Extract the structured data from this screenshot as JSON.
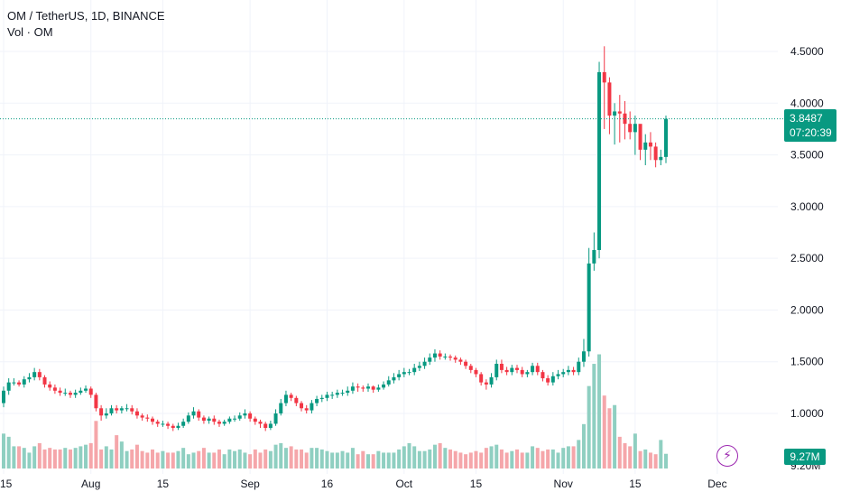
{
  "legend": {
    "symbol_line": "OM / TetherUS, 1D, BINANCE",
    "volume_line": "Vol · OM"
  },
  "price_tag": {
    "price": "3.8487",
    "countdown": "07:20:39"
  },
  "volume_tag": "9.27M",
  "volume_axis_partial": "9.20M",
  "colors": {
    "up": "#089981",
    "down": "#f23645",
    "up_volume": "#8fcfc1",
    "down_volume": "#f5a6aa",
    "grid": "#f0f3fa",
    "alert_icon": "#9c27b0"
  },
  "icons": {
    "alert": "lightning-bolt-icon"
  },
  "chart_data": {
    "type": "candlestick",
    "title": "OM / TetherUS, 1D, BINANCE",
    "ylim": [
      0.25,
      4.75
    ],
    "y_ticks": [
      "4.5000",
      "4.0000",
      "3.5000",
      "3.0000",
      "2.5000",
      "2.0000",
      "1.5000",
      "1.0000"
    ],
    "x_ticks": [
      {
        "label": "15",
        "index": 0
      },
      {
        "label": "Aug",
        "index": 17
      },
      {
        "label": "15",
        "index": 31
      },
      {
        "label": "Sep",
        "index": 48
      },
      {
        "label": "16",
        "index": 63
      },
      {
        "label": "Oct",
        "index": 78
      },
      {
        "label": "15",
        "index": 92
      },
      {
        "label": "Nov",
        "index": 109
      },
      {
        "label": "15",
        "index": 123
      },
      {
        "label": "Dec",
        "index": 139
      }
    ],
    "last_price": 3.8487,
    "open": [
      1.1,
      1.22,
      1.3,
      1.3,
      1.28,
      1.33,
      1.35,
      1.4,
      1.35,
      1.28,
      1.25,
      1.22,
      1.2,
      1.2,
      1.18,
      1.2,
      1.22,
      1.24,
      1.18,
      1.05,
      0.98,
      1.0,
      1.05,
      1.03,
      1.05,
      1.05,
      1.02,
      0.98,
      0.96,
      0.95,
      0.92,
      0.9,
      0.9,
      0.88,
      0.86,
      0.88,
      0.92,
      0.98,
      1.02,
      0.96,
      0.93,
      0.95,
      0.92,
      0.9,
      0.92,
      0.95,
      0.95,
      0.98,
      1.0,
      0.95,
      0.92,
      0.9,
      0.86,
      0.9,
      1.0,
      1.1,
      1.18,
      1.15,
      1.1,
      1.05,
      1.03,
      1.1,
      1.14,
      1.15,
      1.18,
      1.18,
      1.2,
      1.2,
      1.22,
      1.26,
      1.25,
      1.24,
      1.26,
      1.23,
      1.25,
      1.28,
      1.32,
      1.35,
      1.38,
      1.4,
      1.4,
      1.44,
      1.46,
      1.5,
      1.54,
      1.58,
      1.55,
      1.55,
      1.54,
      1.52,
      1.5,
      1.46,
      1.42,
      1.38,
      1.3,
      1.28,
      1.35,
      1.48,
      1.42,
      1.4,
      1.44,
      1.42,
      1.38,
      1.4,
      1.46,
      1.4,
      1.34,
      1.3,
      1.36,
      1.38,
      1.4,
      1.42,
      1.4,
      1.5,
      1.6,
      2.45,
      2.58,
      4.3,
      4.2,
      3.88,
      3.92,
      3.9,
      3.8,
      3.72,
      3.8,
      3.55,
      3.62,
      3.58,
      3.45,
      3.48
    ],
    "close": [
      1.22,
      1.3,
      1.3,
      1.28,
      1.33,
      1.35,
      1.4,
      1.35,
      1.28,
      1.25,
      1.22,
      1.2,
      1.2,
      1.18,
      1.2,
      1.22,
      1.24,
      1.18,
      1.05,
      0.98,
      1.0,
      1.05,
      1.03,
      1.05,
      1.05,
      1.02,
      0.98,
      0.96,
      0.95,
      0.92,
      0.9,
      0.9,
      0.88,
      0.86,
      0.88,
      0.92,
      0.98,
      1.02,
      0.96,
      0.93,
      0.95,
      0.92,
      0.9,
      0.92,
      0.95,
      0.95,
      0.98,
      1.0,
      0.95,
      0.92,
      0.9,
      0.86,
      0.9,
      1.0,
      1.1,
      1.18,
      1.15,
      1.1,
      1.05,
      1.03,
      1.1,
      1.14,
      1.15,
      1.18,
      1.18,
      1.2,
      1.2,
      1.22,
      1.26,
      1.25,
      1.24,
      1.26,
      1.23,
      1.25,
      1.28,
      1.32,
      1.35,
      1.38,
      1.4,
      1.4,
      1.44,
      1.46,
      1.5,
      1.54,
      1.58,
      1.55,
      1.55,
      1.54,
      1.52,
      1.5,
      1.46,
      1.42,
      1.38,
      1.3,
      1.28,
      1.35,
      1.48,
      1.42,
      1.4,
      1.44,
      1.42,
      1.38,
      1.4,
      1.46,
      1.4,
      1.34,
      1.3,
      1.36,
      1.38,
      1.4,
      1.42,
      1.4,
      1.5,
      1.6,
      2.45,
      2.58,
      4.3,
      4.2,
      3.88,
      3.92,
      3.9,
      3.8,
      3.72,
      3.8,
      3.55,
      3.62,
      3.58,
      3.45,
      3.48,
      3.8487
    ],
    "high": [
      1.26,
      1.34,
      1.34,
      1.32,
      1.36,
      1.39,
      1.44,
      1.43,
      1.37,
      1.31,
      1.28,
      1.25,
      1.24,
      1.22,
      1.23,
      1.25,
      1.27,
      1.26,
      1.2,
      1.08,
      1.05,
      1.08,
      1.08,
      1.07,
      1.09,
      1.08,
      1.05,
      1.0,
      0.99,
      0.97,
      0.94,
      0.93,
      0.92,
      0.9,
      0.91,
      0.95,
      1.01,
      1.06,
      1.04,
      0.98,
      0.97,
      0.98,
      0.94,
      0.94,
      0.97,
      0.98,
      1.01,
      1.04,
      1.02,
      0.97,
      0.94,
      0.92,
      0.93,
      1.04,
      1.14,
      1.22,
      1.2,
      1.17,
      1.12,
      1.08,
      1.13,
      1.17,
      1.18,
      1.21,
      1.21,
      1.23,
      1.23,
      1.26,
      1.3,
      1.29,
      1.27,
      1.29,
      1.27,
      1.28,
      1.31,
      1.36,
      1.39,
      1.42,
      1.44,
      1.43,
      1.48,
      1.5,
      1.54,
      1.58,
      1.62,
      1.61,
      1.58,
      1.57,
      1.56,
      1.54,
      1.52,
      1.48,
      1.44,
      1.4,
      1.33,
      1.39,
      1.52,
      1.52,
      1.45,
      1.47,
      1.47,
      1.45,
      1.42,
      1.49,
      1.49,
      1.42,
      1.37,
      1.4,
      1.42,
      1.43,
      1.46,
      1.45,
      1.54,
      1.72,
      2.6,
      2.75,
      4.4,
      4.55,
      4.25,
      4.0,
      4.08,
      4.02,
      3.92,
      3.88,
      3.78,
      3.7,
      3.72,
      3.62,
      3.55,
      3.88
    ],
    "low": [
      1.06,
      1.18,
      1.27,
      1.26,
      1.25,
      1.3,
      1.32,
      1.32,
      1.25,
      1.22,
      1.19,
      1.17,
      1.17,
      1.15,
      1.15,
      1.18,
      1.2,
      1.15,
      1.02,
      0.93,
      0.95,
      0.98,
      1.0,
      1.0,
      1.02,
      0.99,
      0.95,
      0.93,
      0.92,
      0.89,
      0.87,
      0.87,
      0.85,
      0.83,
      0.84,
      0.86,
      0.9,
      0.95,
      0.93,
      0.9,
      0.9,
      0.89,
      0.87,
      0.88,
      0.9,
      0.92,
      0.93,
      0.95,
      0.92,
      0.89,
      0.86,
      0.83,
      0.84,
      0.88,
      0.98,
      1.07,
      1.12,
      1.07,
      1.02,
      1.0,
      1.0,
      1.07,
      1.11,
      1.12,
      1.14,
      1.15,
      1.17,
      1.17,
      1.19,
      1.21,
      1.21,
      1.21,
      1.2,
      1.21,
      1.23,
      1.26,
      1.29,
      1.32,
      1.35,
      1.37,
      1.37,
      1.41,
      1.43,
      1.47,
      1.5,
      1.52,
      1.52,
      1.51,
      1.49,
      1.47,
      1.43,
      1.39,
      1.35,
      1.27,
      1.23,
      1.25,
      1.32,
      1.39,
      1.37,
      1.37,
      1.39,
      1.35,
      1.35,
      1.37,
      1.37,
      1.31,
      1.27,
      1.27,
      1.33,
      1.35,
      1.37,
      1.37,
      1.37,
      1.45,
      1.55,
      2.38,
      2.5,
      3.75,
      3.7,
      3.6,
      3.62,
      3.65,
      3.65,
      3.5,
      3.45,
      3.4,
      3.45,
      3.38,
      3.4,
      3.42
    ],
    "volume_millions": [
      22,
      20,
      14,
      14,
      13,
      10,
      14,
      16,
      12,
      13,
      12,
      12,
      13,
      12,
      13,
      14,
      15,
      16,
      30,
      12,
      14,
      12,
      21,
      17,
      11,
      12,
      15,
      11,
      10,
      12,
      10,
      11,
      10,
      10,
      11,
      13,
      9,
      10,
      11,
      13,
      10,
      10,
      12,
      9,
      12,
      11,
      12,
      10,
      9,
      12,
      10,
      12,
      11,
      15,
      16,
      13,
      14,
      12,
      12,
      10,
      13,
      13,
      12,
      11,
      10,
      10,
      11,
      10,
      13,
      9,
      11,
      9,
      9,
      11,
      10,
      10,
      10,
      12,
      14,
      16,
      14,
      11,
      11,
      12,
      15,
      16,
      13,
      12,
      11,
      10,
      9,
      10,
      11,
      10,
      13,
      14,
      15,
      12,
      10,
      11,
      12,
      10,
      10,
      14,
      13,
      11,
      12,
      12,
      10,
      13,
      14,
      14,
      18,
      28,
      52,
      66,
      72,
      46,
      38,
      40,
      20,
      16,
      14,
      22,
      11,
      12,
      10,
      9,
      18,
      9.27
    ]
  }
}
